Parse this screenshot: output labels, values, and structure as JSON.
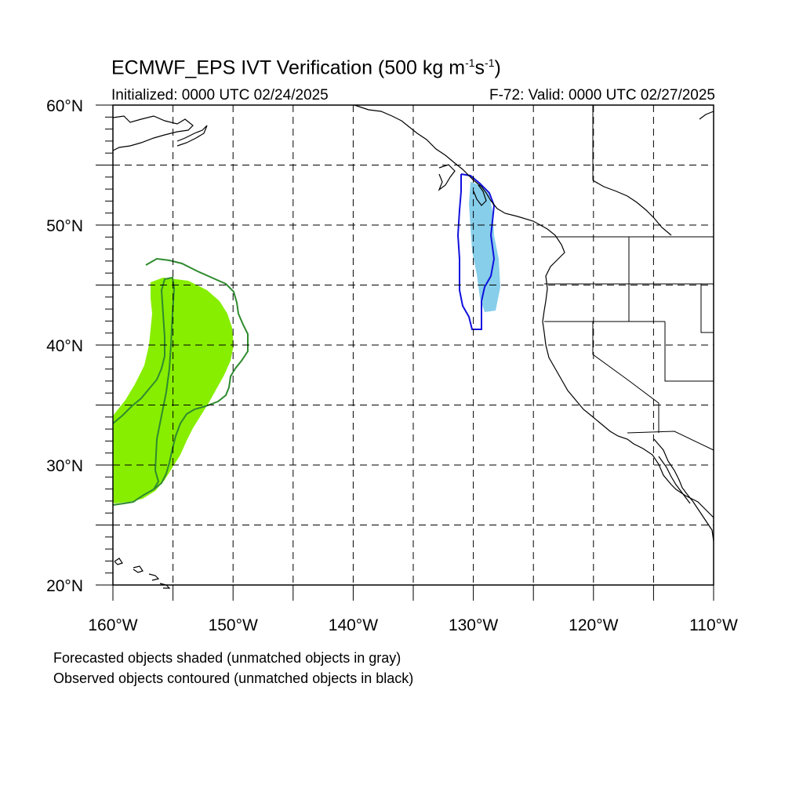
{
  "title": {
    "main": "ECMWF_EPS IVT Verification (500 kg m",
    "sup1": "-1",
    "mid": "s",
    "sup2": "-1",
    "end": ")"
  },
  "initialized": "Initialized: 0000 UTC 02/24/2025",
  "valid": "F-72: Valid: 0000 UTC 02/27/2025",
  "notes": [
    "Forecasted objects shaded (unmatched objects in gray)",
    "Observed objects contoured (unmatched objects in black)"
  ],
  "map": {
    "lon_range": [
      -160,
      -110
    ],
    "lat_range": [
      20,
      60
    ],
    "lat_labels": [
      {
        "value": 60,
        "text": "60°N"
      },
      {
        "value": 50,
        "text": "50°N"
      },
      {
        "value": 40,
        "text": "40°N"
      },
      {
        "value": 30,
        "text": "30°N"
      },
      {
        "value": 20,
        "text": "20°N"
      }
    ],
    "lon_labels": [
      {
        "value": -160,
        "text": "160°W"
      },
      {
        "value": -150,
        "text": "150°W"
      },
      {
        "value": -140,
        "text": "140°W"
      },
      {
        "value": -130,
        "text": "130°W"
      },
      {
        "value": -120,
        "text": "120°W"
      },
      {
        "value": -110,
        "text": "110°W"
      }
    ],
    "grid_lons": [
      -155,
      -150,
      -145,
      -140,
      -135,
      -130,
      -125,
      -120,
      -115
    ],
    "grid_lats": [
      25,
      30,
      35,
      40,
      45,
      50,
      55
    ],
    "colors": {
      "forecast_object_1": "#88ee00",
      "observed_contour_1": "#2e8b2e",
      "forecast_object_2": "#87ceeb",
      "observed_contour_2": "#1010dd"
    }
  }
}
